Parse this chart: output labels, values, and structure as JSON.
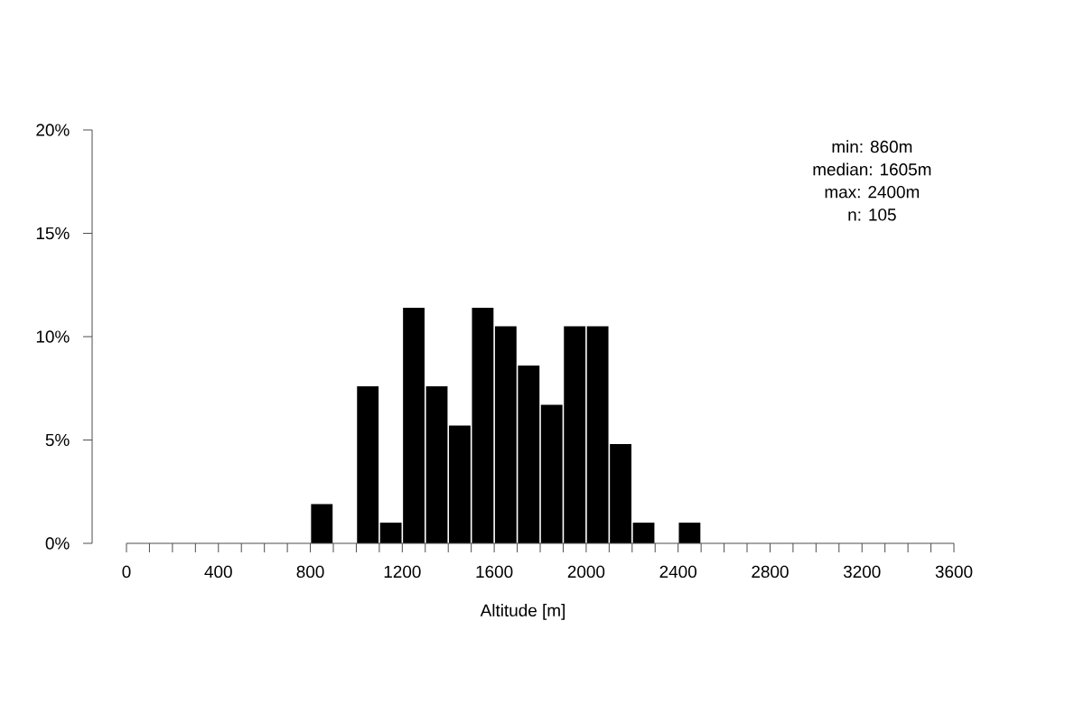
{
  "chart_data": {
    "type": "histogram",
    "bins": [
      800,
      900,
      1000,
      1100,
      1200,
      1300,
      1400,
      1500,
      1600,
      1700,
      1800,
      1900,
      2000,
      2100,
      2200,
      2300,
      2400,
      2500
    ],
    "values": [
      1.9,
      0,
      7.6,
      1.0,
      11.4,
      7.6,
      5.7,
      11.4,
      10.5,
      8.6,
      6.7,
      10.5,
      10.5,
      4.8,
      1.0,
      0,
      1.0
    ],
    "color": "#000000",
    "xlabel": "Altitude [m]",
    "xlim": [
      0,
      3600
    ],
    "xticks": [
      0,
      {
        "value": 100,
        "label": null
      },
      {
        "value": 200,
        "label": null
      },
      {
        "value": 300,
        "label": null
      },
      400,
      {
        "value": 500,
        "label": null
      },
      {
        "value": 600,
        "label": null
      },
      {
        "value": 700,
        "label": null
      },
      800,
      {
        "value": 900,
        "label": null
      },
      {
        "value": 1000,
        "label": null
      },
      {
        "value": 1100,
        "label": null
      },
      1200,
      {
        "value": 1300,
        "label": null
      },
      {
        "value": 1400,
        "label": null
      },
      {
        "value": 1500,
        "label": null
      },
      1600,
      {
        "value": 1700,
        "label": null
      },
      {
        "value": 1800,
        "label": null
      },
      {
        "value": 1900,
        "label": null
      },
      2000,
      {
        "value": 2100,
        "label": null
      },
      {
        "value": 2200,
        "label": null
      },
      {
        "value": 2300,
        "label": null
      },
      2400,
      {
        "value": 2500,
        "label": null
      },
      {
        "value": 2600,
        "label": null
      },
      {
        "value": 2700,
        "label": null
      },
      2800,
      {
        "value": 2900,
        "label": null
      },
      {
        "value": 3000,
        "label": null
      },
      {
        "value": 3100,
        "label": null
      },
      3200,
      {
        "value": 3300,
        "label": null
      },
      {
        "value": 3400,
        "label": null
      },
      {
        "value": 3500,
        "label": null
      },
      3600
    ],
    "ylim": [
      0,
      20
    ],
    "yticks": [
      {
        "value": 0,
        "label": "0%"
      },
      {
        "value": 5,
        "label": "5%"
      },
      {
        "value": 10,
        "label": "10%"
      },
      {
        "value": 15,
        "label": "15%"
      },
      {
        "value": 20,
        "label": "20%"
      }
    ],
    "grid": false,
    "annotations": [
      "min: 860m",
      "median: 1605m",
      "max: 2400m",
      "n:  105"
    ]
  }
}
